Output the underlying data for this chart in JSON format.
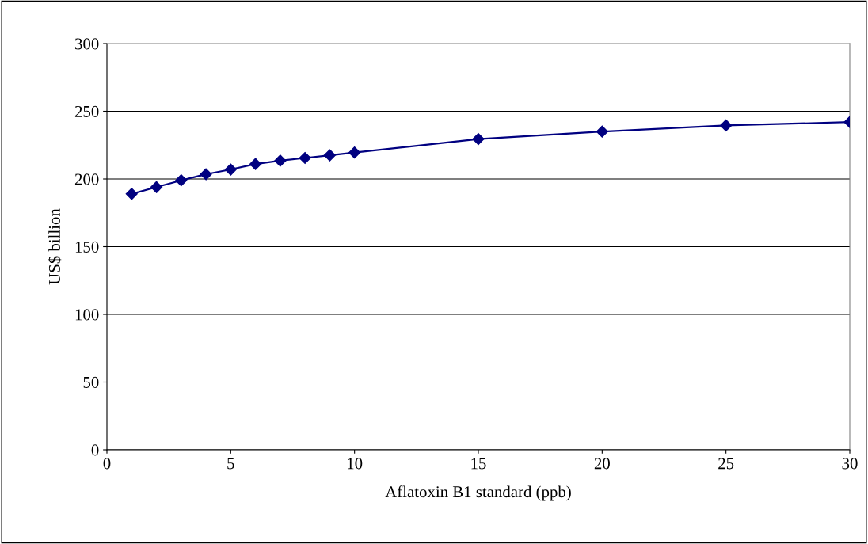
{
  "chart_data": {
    "type": "line",
    "xlabel": "Aflatoxin B1 standard (ppb)",
    "ylabel": "US$ billion",
    "x": [
      1,
      2,
      3,
      4,
      5,
      6,
      7,
      8,
      9,
      10,
      15,
      20,
      25,
      30
    ],
    "series": [
      {
        "color": "#000080",
        "values": [
          189,
          194,
          199,
          203.5,
          207,
          211,
          213.5,
          215.5,
          217.5,
          219.5,
          229.5,
          235,
          239.5,
          242
        ]
      }
    ],
    "xlim": [
      0,
      30
    ],
    "xticks": [
      0,
      5,
      10,
      15,
      20,
      25,
      30
    ],
    "ylim": [
      0,
      300
    ],
    "yticks": [
      0,
      50,
      100,
      150,
      200,
      250,
      300
    ],
    "grid": "y",
    "marker": "diamond",
    "line_style": "solid"
  }
}
